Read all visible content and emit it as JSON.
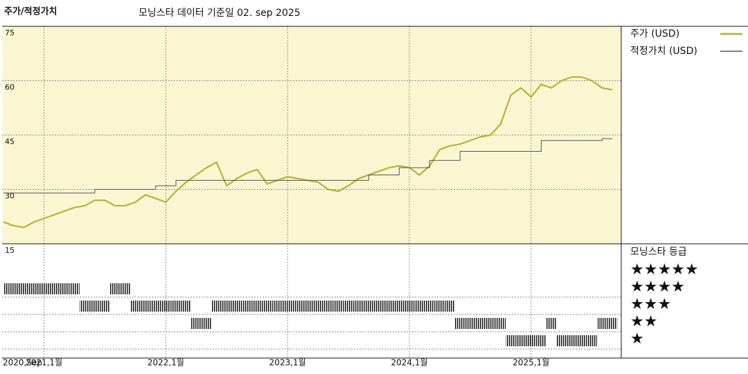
{
  "chart_data": {
    "type": "line",
    "title": "주가/적정가치",
    "subtitle": "모닝스타 데이터 기준일 02. sep 2025",
    "categories": [
      "2020,Sep",
      null,
      null,
      null,
      "2021,1월",
      null,
      null,
      null,
      null,
      null,
      null,
      null,
      null,
      null,
      null,
      null,
      "2022,1월",
      null,
      null,
      null,
      null,
      null,
      null,
      null,
      null,
      null,
      null,
      null,
      "2023,1월",
      null,
      null,
      null,
      null,
      null,
      null,
      null,
      null,
      null,
      null,
      null,
      "2024,1월",
      null,
      null,
      null,
      null,
      null,
      null,
      null,
      null,
      null,
      null,
      null,
      "2025,1월",
      null,
      null,
      null,
      null,
      null,
      null,
      null,
      null
    ],
    "series": [
      {
        "name": "주가 (USD)",
        "color": "#b4b52c",
        "width": 2.2,
        "values": [
          21,
          20,
          19.5,
          21,
          22,
          23,
          24,
          25,
          25.5,
          27,
          27,
          25.5,
          25.5,
          26.5,
          28.5,
          27.5,
          26.5,
          29.5,
          32,
          34,
          36,
          37.5,
          31,
          33,
          34.5,
          35.5,
          31.5,
          32.5,
          33.5,
          33,
          32.5,
          32,
          30,
          29.5,
          31,
          33,
          34,
          35,
          36,
          36.5,
          36,
          34,
          36.5,
          41,
          42,
          42.5,
          43.5,
          44.5,
          45,
          48,
          56,
          58,
          55.5,
          59,
          58,
          60,
          61,
          61,
          60,
          58,
          57.5
        ]
      },
      {
        "name": "적정가치 (USD)",
        "color": "#555555",
        "width": 1,
        "step": true,
        "values": [
          29,
          29,
          29,
          29,
          29,
          29,
          29,
          29,
          29,
          29,
          30,
          30,
          30,
          30,
          30,
          30,
          31,
          31,
          32.5,
          32.5,
          32.5,
          32.5,
          32.5,
          32.5,
          32.5,
          32.5,
          32.5,
          32.5,
          32.5,
          32.5,
          32.5,
          32.5,
          32.5,
          32.5,
          32.5,
          32.5,
          32.5,
          34,
          34,
          34,
          36,
          36,
          36,
          38,
          38,
          38,
          40.5,
          40.5,
          40.5,
          40.5,
          40.5,
          40.5,
          40.5,
          40.5,
          43.5,
          43.5,
          43.5,
          43.5,
          43.5,
          43.5,
          44
        ]
      }
    ],
    "ylim": [
      15,
      75
    ],
    "yticks": [
      15,
      30,
      45,
      60,
      75
    ],
    "grid": true,
    "background": "#faf6d2",
    "rating": {
      "name": "모닝스타 등급",
      "color": "#222222",
      "labels": [
        "★",
        "★★",
        "★★★",
        "★★★★",
        "★★★★★"
      ],
      "values": [
        4,
        4,
        4,
        4,
        4,
        4,
        4,
        4,
        3,
        3,
        3,
        4,
        4,
        3,
        3,
        3,
        3,
        3,
        3,
        2,
        2,
        3,
        3,
        3,
        3,
        3,
        3,
        3,
        3,
        3,
        3,
        3,
        3,
        3,
        3,
        3,
        3,
        3,
        3,
        3,
        3,
        3,
        3,
        3,
        3,
        2,
        2,
        2,
        2,
        2,
        1,
        1,
        1,
        1,
        2,
        1,
        1,
        1,
        1,
        2,
        2
      ]
    }
  }
}
